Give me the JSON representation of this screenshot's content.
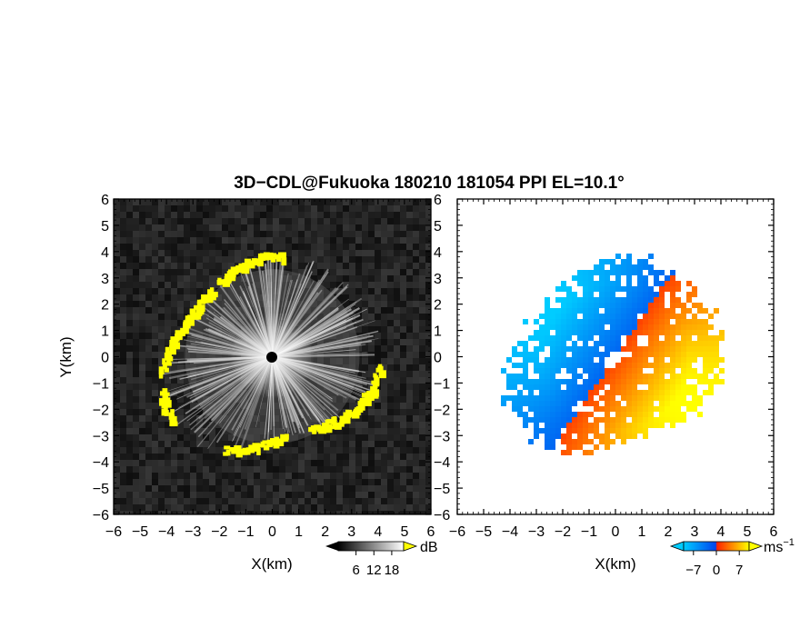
{
  "chart_data": [
    {
      "type": "heatmap",
      "panel": "left",
      "title": "3D−CDL@Fukuoka 180210 181054 PPI EL=10.1°",
      "xlabel": "X(km)",
      "ylabel": "Y(km)",
      "xlim": [
        -6,
        6
      ],
      "ylim": [
        -6,
        6
      ],
      "xticks": [
        "−6",
        "−5",
        "−4",
        "−3",
        "−2",
        "−1",
        "0",
        "1",
        "2",
        "3",
        "4",
        "5",
        "6"
      ],
      "yticks": [
        "6",
        "5",
        "4",
        "3",
        "2",
        "1",
        "0",
        "−1",
        "−2",
        "−3",
        "−4",
        "−5",
        "−6"
      ],
      "colorbar": {
        "unit": "dB",
        "ticks": [
          "6",
          "12",
          "18"
        ],
        "tick_values": [
          6,
          12,
          18
        ],
        "range": [
          0,
          22
        ],
        "colors": [
          "#000000",
          "#ffffff"
        ]
      },
      "highlight_color": "#ffff00",
      "center_marker": "black dot at (0,0)"
    },
    {
      "type": "heatmap",
      "panel": "right",
      "xlabel": "X(km)",
      "xlim": [
        -6,
        6
      ],
      "ylim": [
        -6,
        6
      ],
      "xticks": [
        "−6",
        "−5",
        "−4",
        "−3",
        "−2",
        "−1",
        "0",
        "1",
        "2",
        "3",
        "4",
        "5",
        "6"
      ],
      "colorbar": {
        "unit": "ms",
        "unit_exponent": "−1",
        "ticks": [
          "−7",
          "0",
          "7"
        ],
        "tick_values": [
          -7,
          0,
          7
        ],
        "range": [
          -10,
          10
        ],
        "colors": [
          "#00ccff",
          "#0044ee",
          "#ff2200",
          "#ffff00"
        ]
      }
    }
  ]
}
